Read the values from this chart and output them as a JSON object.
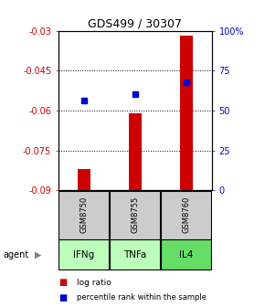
{
  "title": "GDS499 / 30307",
  "categories": [
    "IFNg",
    "TNFa",
    "IL4"
  ],
  "sample_ids": [
    "GSM8750",
    "GSM8755",
    "GSM8760"
  ],
  "log_ratios": [
    -0.082,
    -0.061,
    -0.032
  ],
  "percentile_ranks": [
    56,
    60,
    68
  ],
  "ylim_left": [
    -0.09,
    -0.03
  ],
  "ylim_right": [
    0,
    100
  ],
  "yticks_left": [
    -0.09,
    -0.075,
    -0.06,
    -0.045,
    -0.03
  ],
  "yticks_right": [
    0,
    25,
    50,
    75,
    100
  ],
  "ytick_labels_left": [
    "-0.09",
    "-0.075",
    "-0.06",
    "-0.045",
    "-0.03"
  ],
  "ytick_labels_right": [
    "0",
    "25",
    "50",
    "75",
    "100%"
  ],
  "bar_color": "#cc0000",
  "dot_color": "#0000cc",
  "sample_bg": "#cccccc",
  "agent_colors": [
    "#bbffbb",
    "#bbffbb",
    "#66dd66"
  ],
  "left_axis_color": "#cc0000",
  "right_axis_color": "#0000cc",
  "bar_width": 0.25
}
